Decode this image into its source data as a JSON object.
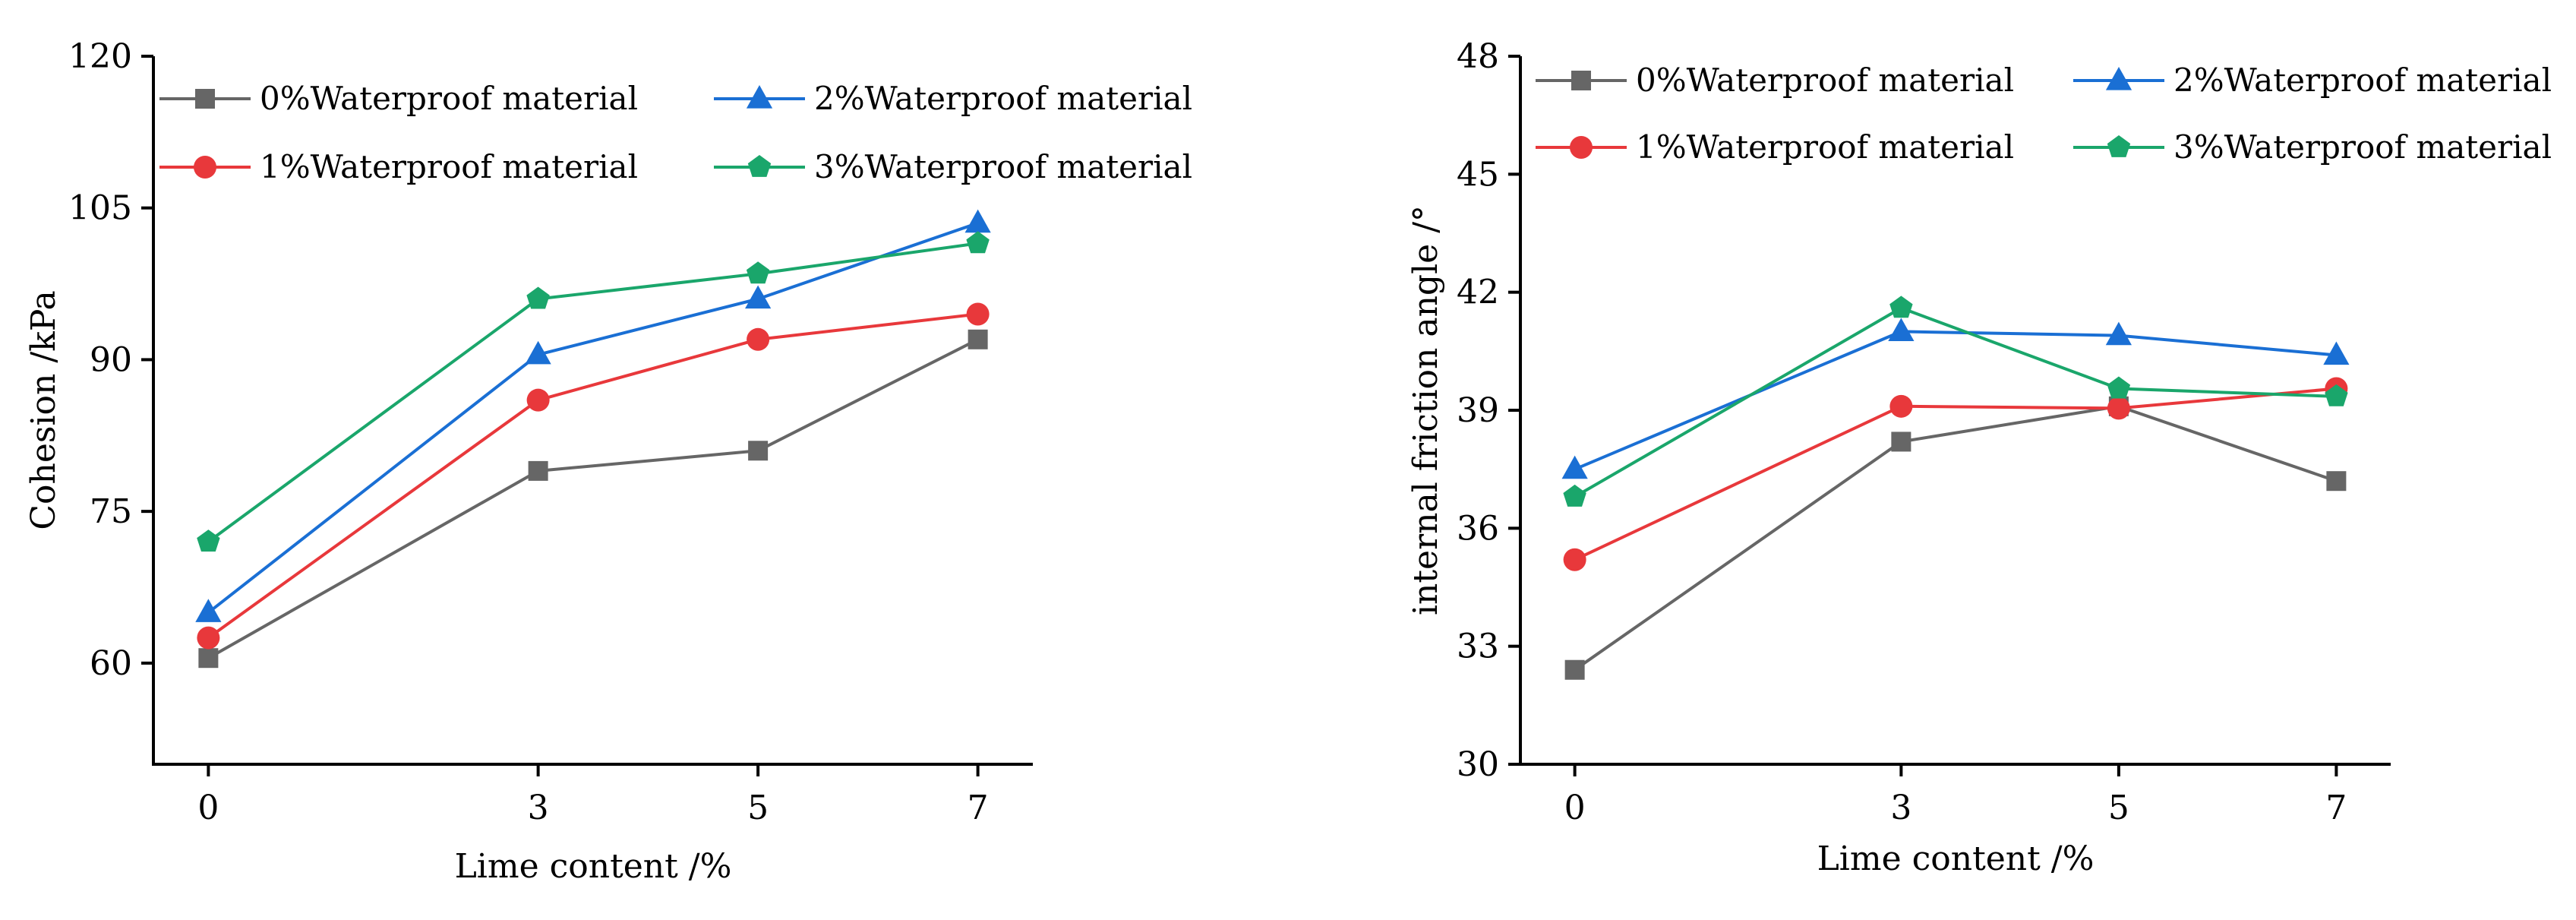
{
  "chart_data": [
    {
      "type": "line",
      "xlabel": "Lime content /%",
      "ylabel": "Cohesion /kPa",
      "x": [
        0,
        3,
        5,
        7
      ],
      "xticks": [
        0,
        3,
        5,
        7
      ],
      "xlim": [
        -0.5,
        7.5
      ],
      "ylim": [
        50,
        120
      ],
      "yticks": [
        60,
        75,
        90,
        105,
        120
      ],
      "grid": false,
      "legend": "top-left",
      "series": [
        {
          "name": "0%Waterproof material",
          "values": [
            60.5,
            79,
            81,
            92
          ],
          "color": "#666666",
          "marker": "square"
        },
        {
          "name": "2%Waterproof material",
          "values": [
            65,
            90.5,
            96,
            103.5
          ],
          "color": "#1a6fd4",
          "marker": "triangle"
        },
        {
          "name": "1%Waterproof material",
          "values": [
            62.5,
            86,
            92,
            94.5
          ],
          "color": "#e8383b",
          "marker": "circle"
        },
        {
          "name": "3%Waterproof material",
          "values": [
            72,
            96,
            98.5,
            101.5
          ],
          "color": "#1aa66b",
          "marker": "pentagon"
        }
      ]
    },
    {
      "type": "line",
      "xlabel": "Lime content /%",
      "ylabel": "internal friction angle /°",
      "x": [
        0,
        3,
        5,
        7
      ],
      "xticks": [
        0,
        3,
        5,
        7
      ],
      "xlim": [
        -0.5,
        7.5
      ],
      "ylim": [
        30,
        48
      ],
      "yticks": [
        30,
        33,
        36,
        39,
        42,
        45,
        48
      ],
      "grid": false,
      "legend": "top",
      "series": [
        {
          "name": "0%Waterproof material",
          "values": [
            32.4,
            38.2,
            39.1,
            37.2
          ],
          "color": "#666666",
          "marker": "square"
        },
        {
          "name": "2%Waterproof material",
          "values": [
            37.5,
            41,
            40.9,
            40.4
          ],
          "color": "#1a6fd4",
          "marker": "triangle"
        },
        {
          "name": "1%Waterproof material",
          "values": [
            35.2,
            39.1,
            39.05,
            39.55
          ],
          "color": "#e8383b",
          "marker": "circle"
        },
        {
          "name": "3%Waterproof material",
          "values": [
            36.8,
            41.6,
            39.55,
            39.35
          ],
          "color": "#1aa66b",
          "marker": "pentagon"
        }
      ]
    }
  ]
}
